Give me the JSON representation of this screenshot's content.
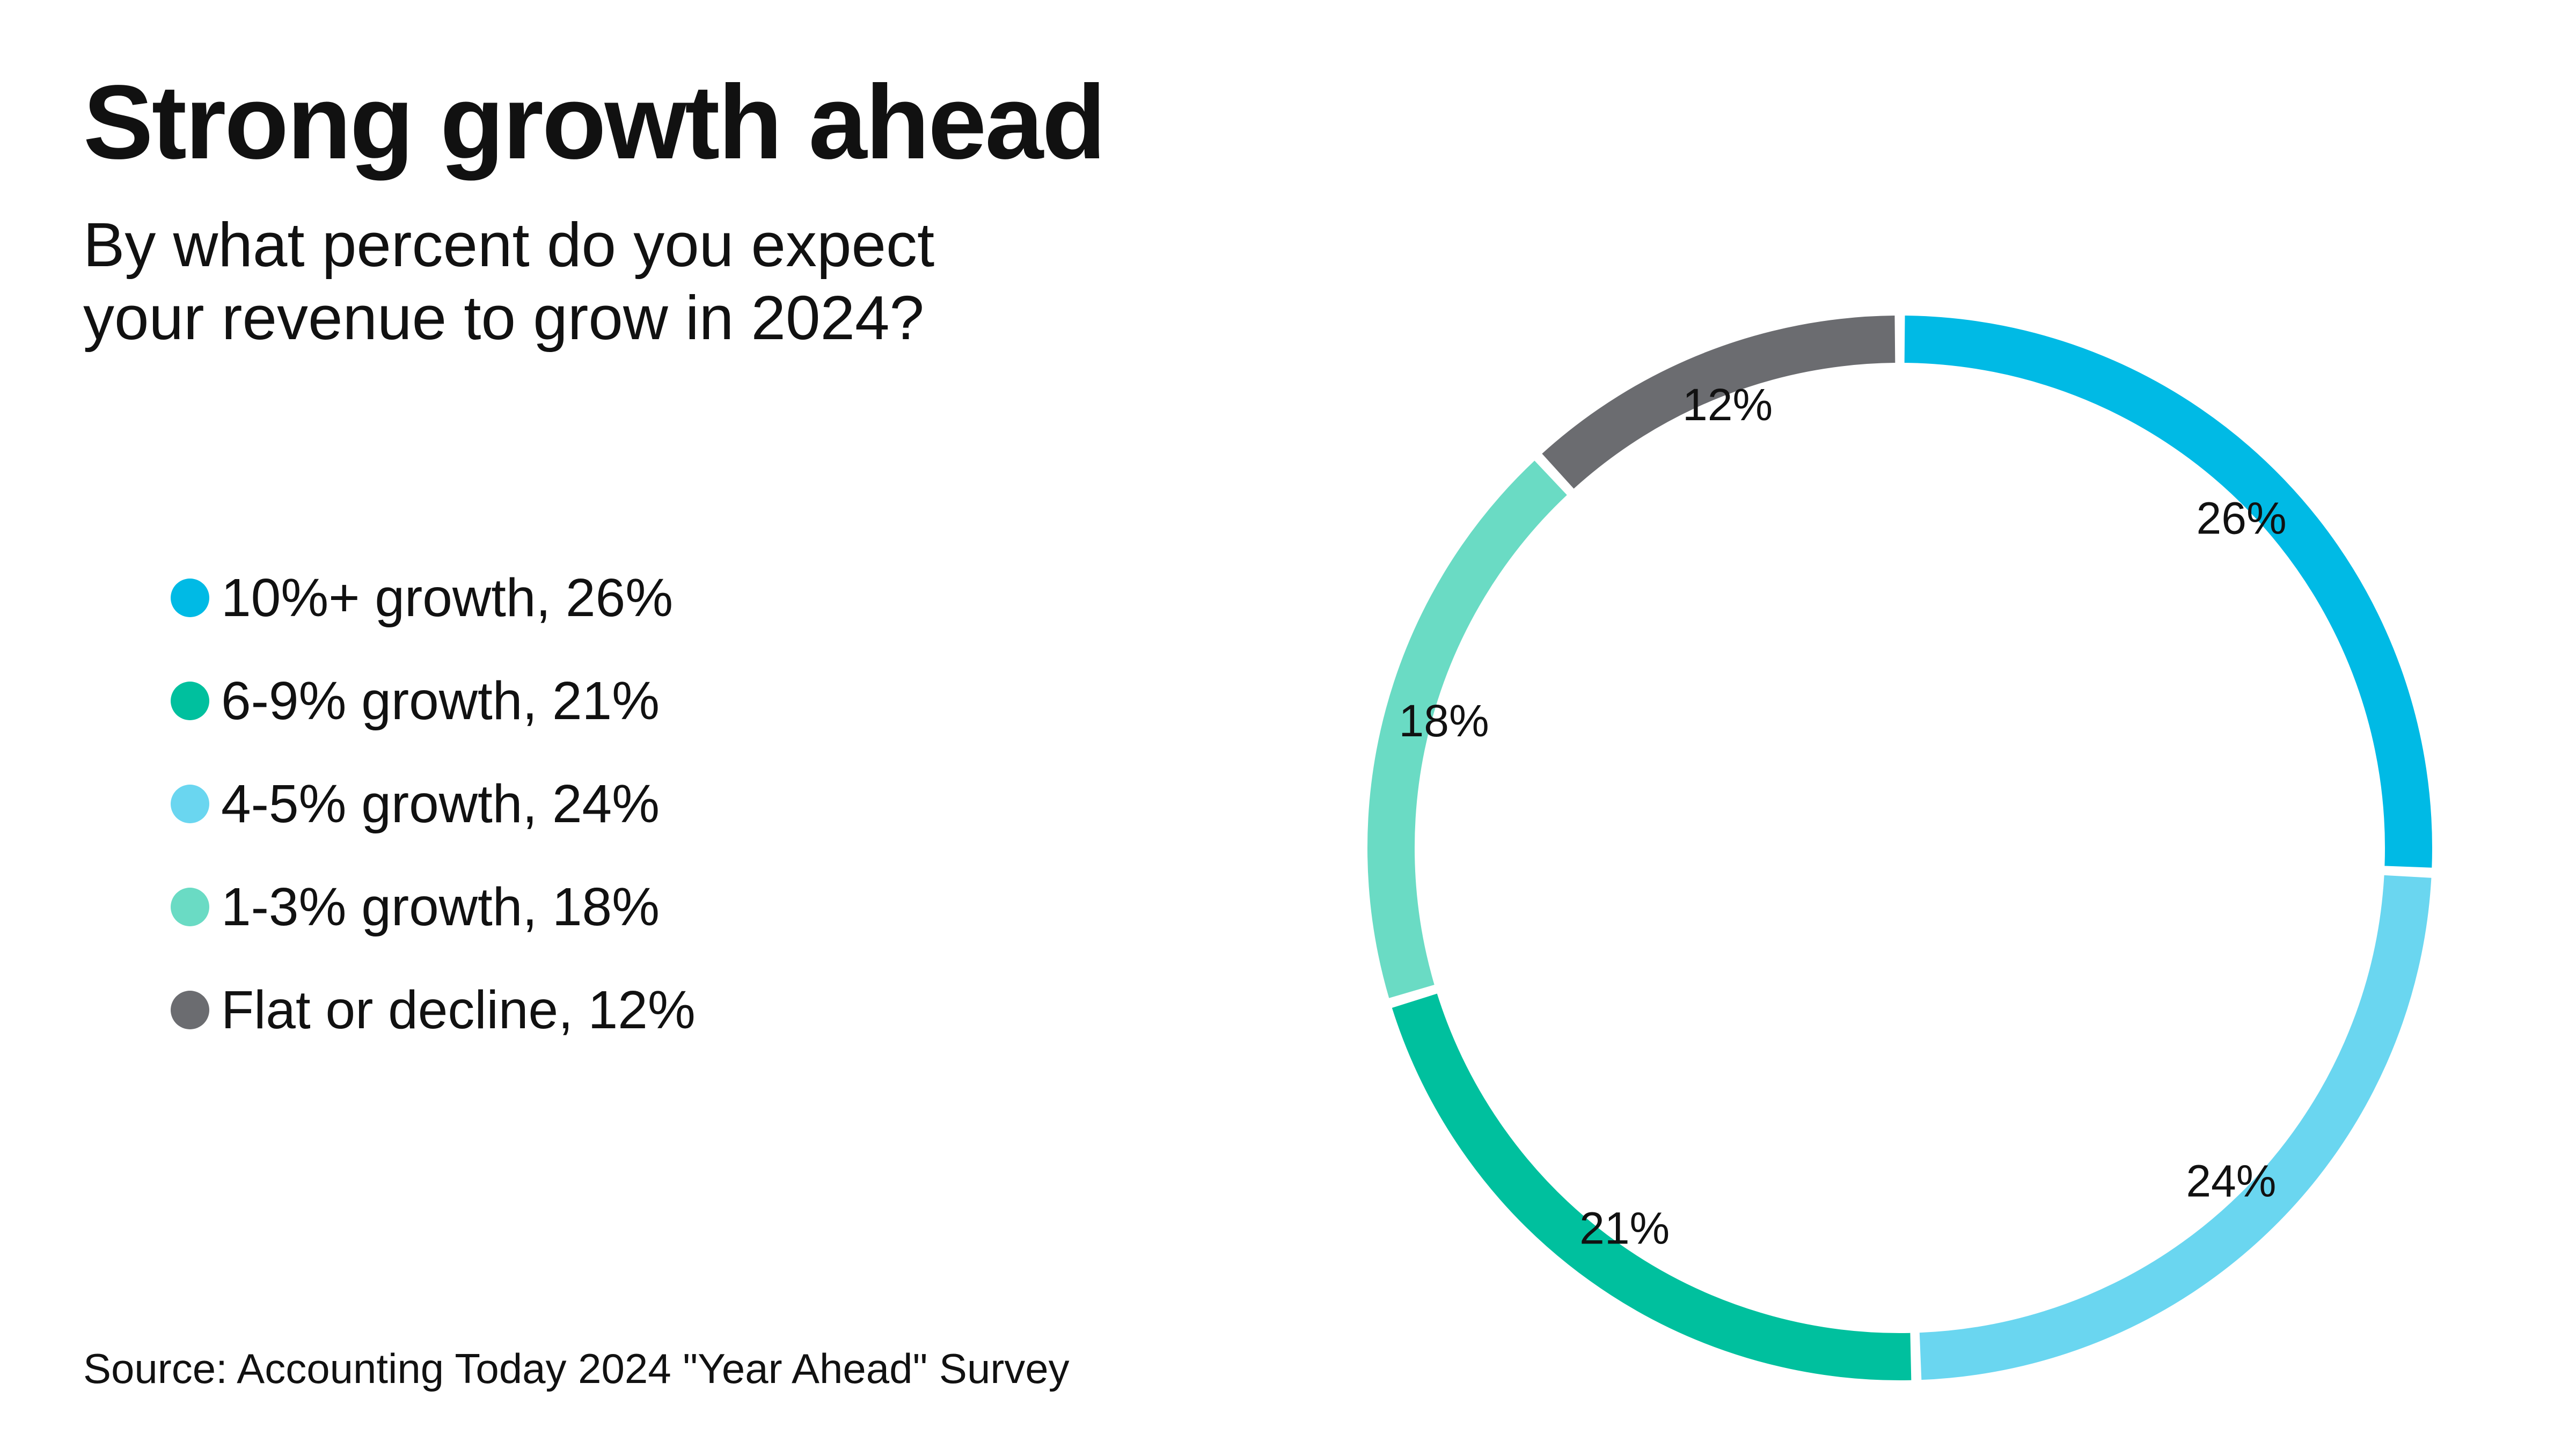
{
  "header": {
    "title": "Strong growth ahead",
    "subtitle_line1": "By what percent do you expect",
    "subtitle_line2": "your revenue to grow in 2024?"
  },
  "source": "Source: Accounting Today 2024 \"Year Ahead\" Survey",
  "chart_data": {
    "type": "pie",
    "style": "donut",
    "title": "Strong growth ahead",
    "subtitle": "By what percent do you expect your revenue to grow in 2024?",
    "legend_position": "left",
    "start": "top, clockwise",
    "slices": [
      {
        "name": "10%+ growth",
        "legend": "10%+ growth, 26%",
        "value": 26,
        "label": "26%",
        "color": "#00BAE5"
      },
      {
        "name": "4-5% growth",
        "legend": "4-5% growth, 24%",
        "value": 24,
        "label": "24%",
        "color": "#6AD6F0"
      },
      {
        "name": "6-9% growth",
        "legend": "6-9% growth, 21%",
        "value": 21,
        "label": "21%",
        "color": "#00C09E"
      },
      {
        "name": "1-3% growth",
        "legend": "1-3% growth, 18%",
        "value": 18,
        "label": "18%",
        "color": "#6ADBC4"
      },
      {
        "name": "Flat or decline",
        "legend": "Flat or decline, 12%",
        "value": 12,
        "label": "12%",
        "color": "#6B6C70"
      }
    ],
    "legend_order": [
      "10%+ growth",
      "6-9% growth",
      "4-5% growth",
      "1-3% growth",
      "Flat or decline"
    ]
  },
  "legend": [
    {
      "label": "10%+ growth, 26%",
      "color": "#00BAE5"
    },
    {
      "label": "6-9% growth, 21%",
      "color": "#00C09E"
    },
    {
      "label": "4-5% growth, 24%",
      "color": "#6AD6F0"
    },
    {
      "label": "1-3% growth, 18%",
      "color": "#6ADBC4"
    },
    {
      "label": "Flat or decline, 12%",
      "color": "#6B6C70"
    }
  ]
}
